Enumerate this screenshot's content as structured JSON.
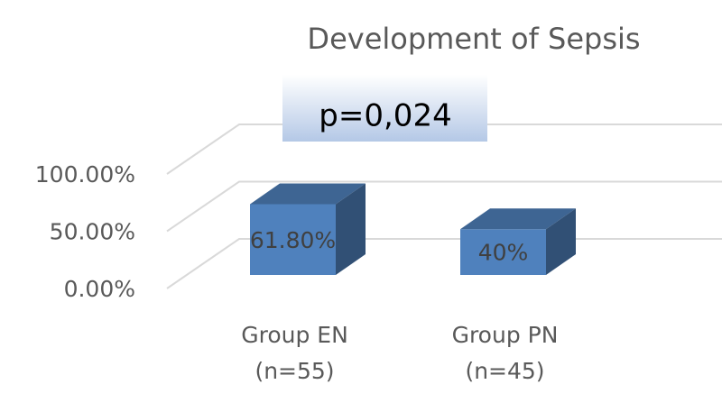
{
  "chart_data": {
    "type": "bar3d",
    "title": "Development of Sepsis",
    "annotation": "p=0,024",
    "categories": [
      "Group EN\n(n=55)",
      "Group PN\n(n=45)"
    ],
    "values": [
      61.8,
      40
    ],
    "value_labels": [
      "61.80%",
      "40%"
    ],
    "color": "#4f81bd",
    "ylim": [
      0,
      100
    ],
    "yticks": [
      {
        "value": 0,
        "label": "0.00%"
      },
      {
        "value": 50,
        "label": "50.00%"
      },
      {
        "value": 100,
        "label": "100.00%"
      }
    ],
    "grid": true
  }
}
